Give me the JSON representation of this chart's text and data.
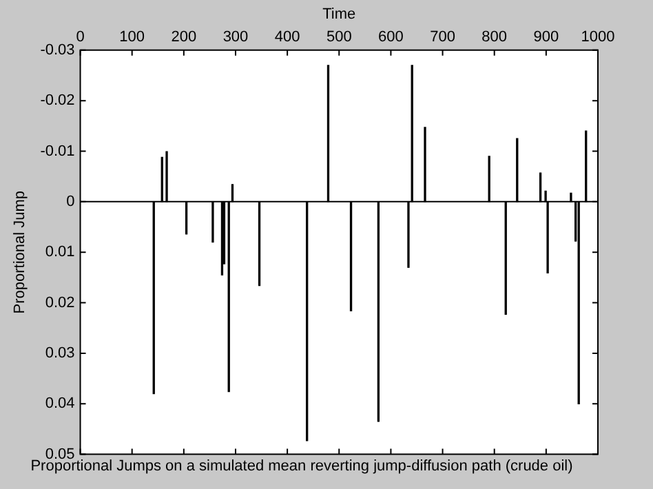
{
  "chart_data": {
    "type": "bar",
    "title": "Proportional Jumps on a simulated mean reverting jump-diffusion path (crude oil)",
    "xlabel": "Time",
    "ylabel": "Proportional Jump",
    "x": [
      142,
      158,
      167,
      205,
      256,
      274,
      278,
      287,
      294,
      346,
      438,
      479,
      523,
      576,
      634,
      641,
      666,
      790,
      822,
      844,
      889,
      899,
      903,
      948,
      957,
      963,
      977
    ],
    "values": [
      0.038,
      -0.0088,
      -0.0099,
      0.0064,
      0.008,
      0.0145,
      0.0123,
      0.0376,
      -0.0034,
      0.0166,
      0.0473,
      -0.027,
      0.0216,
      0.0435,
      0.013,
      -0.027,
      -0.0147,
      -0.009,
      0.0223,
      -0.0125,
      -0.0057,
      -0.0021,
      0.0141,
      -0.0017,
      0.0078,
      0.04,
      -0.014
    ],
    "color": "#000000",
    "xlim": [
      0,
      1000
    ],
    "xticks": [
      0,
      100,
      200,
      300,
      400,
      500,
      600,
      700,
      800,
      900,
      1000
    ],
    "ylim": [
      0.05,
      -0.03
    ],
    "yticks": [
      -0.03,
      -0.02,
      -0.01,
      0,
      0.01,
      0.02,
      0.03,
      0.04,
      0.05
    ],
    "ref_lines": [
      {
        "axis": "y",
        "value": 0,
        "color": "#000000"
      }
    ],
    "grid": false,
    "legend": false
  }
}
